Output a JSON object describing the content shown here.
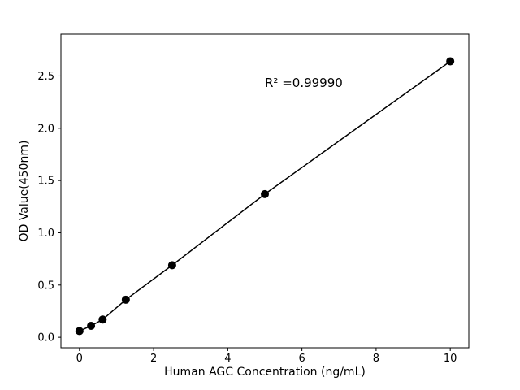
{
  "chart_data": {
    "type": "scatter",
    "title": "",
    "xlabel": "Human AGC Concentration (ng/mL)",
    "ylabel": "OD Value(450nm)",
    "annotation": "R² =0.99990",
    "annotation_pos": {
      "x": 5.0,
      "y": 2.5
    },
    "x": [
      0,
      0.3125,
      0.625,
      1.25,
      2.5,
      5,
      10
    ],
    "y": [
      0.06,
      0.11,
      0.17,
      0.36,
      0.69,
      1.37,
      2.64
    ],
    "line": true,
    "marker": "circle",
    "marker_color": "#000000",
    "line_color": "#000000",
    "background": "#ffffff",
    "grid": false,
    "legend": "none",
    "xlim": [
      -0.5,
      10.5
    ],
    "ylim": [
      -0.1,
      2.9
    ],
    "xticks": [
      0,
      2,
      4,
      6,
      8,
      10
    ],
    "xtick_labels": [
      "0",
      "2",
      "4",
      "6",
      "8",
      "10"
    ],
    "yticks": [
      0.0,
      0.5,
      1.0,
      1.5,
      2.0,
      2.5
    ],
    "ytick_labels": [
      "0.0",
      "0.5",
      "1.0",
      "1.5",
      "2.0",
      "2.5"
    ]
  }
}
